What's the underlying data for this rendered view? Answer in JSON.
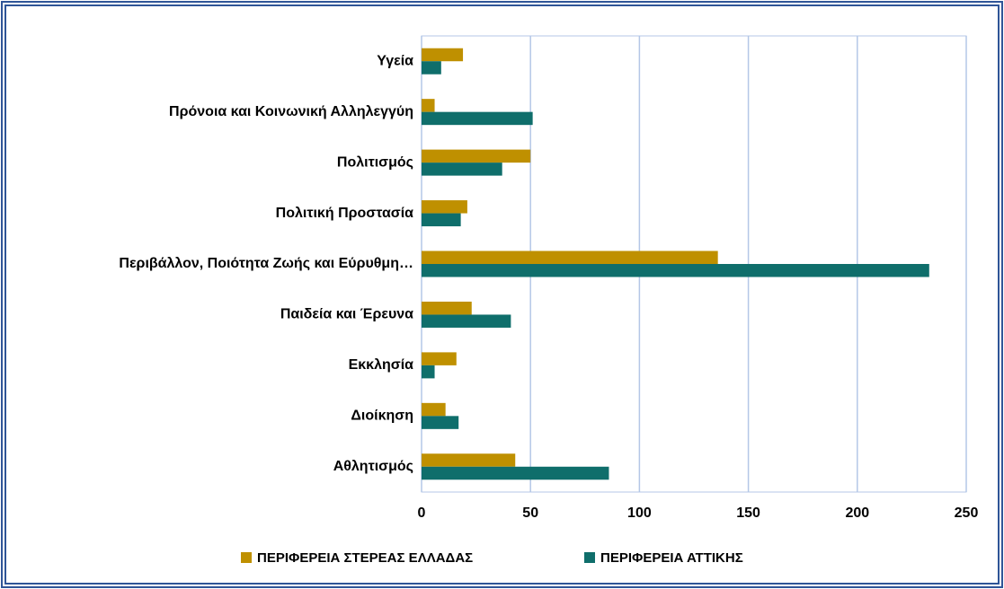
{
  "chart_data": {
    "type": "hbar",
    "categories": [
      "Υγεία",
      "Πρόνοια και Κοινωνική Αλληλεγγύη",
      "Πολιτισμός",
      "Πολιτική Προστασία",
      "Περιβάλλον, Ποιότητα Ζωής και Εύρυθμη…",
      "Παιδεία και Έρευνα",
      "Εκκλησία",
      "Διοίκηση",
      "Αθλητισμός"
    ],
    "series": [
      {
        "name": "ΠΕΡΙΦΕΡΕΙΑ ΣΤΕΡΕΑΣ ΕΛΛΑΔΑΣ",
        "color": "#bf9000",
        "values": [
          19,
          6,
          50,
          21,
          136,
          23,
          16,
          11,
          43
        ]
      },
      {
        "name": "ΠΕΡΙΦΕΡΕΙΑ ΑΤΤΙΚΗΣ",
        "color": "#0f6e6b",
        "values": [
          9,
          51,
          37,
          18,
          233,
          41,
          6,
          17,
          86
        ]
      }
    ],
    "xlim": [
      0,
      250
    ],
    "xticks": [
      0,
      50,
      100,
      150,
      200,
      250
    ],
    "grid": true,
    "legend": "bottom"
  }
}
